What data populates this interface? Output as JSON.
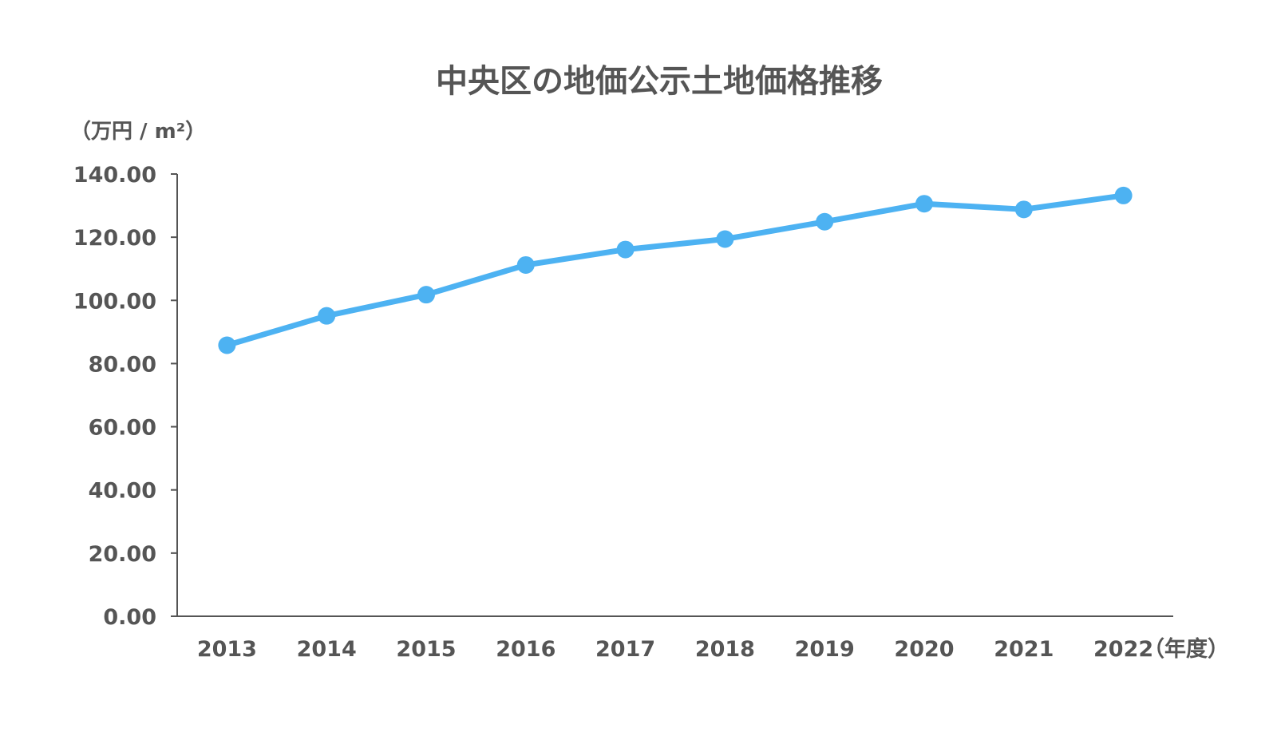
{
  "chart_data": {
    "type": "line",
    "title": "中央区の地価公示土地価格推移",
    "ylabel": "（万円 / m²）",
    "xlabel": "（年度）",
    "categories": [
      "2013",
      "2014",
      "2015",
      "2016",
      "2017",
      "2018",
      "2019",
      "2020",
      "2021",
      "2022"
    ],
    "yticks": [
      "0.00",
      "20.00",
      "40.00",
      "60.00",
      "80.00",
      "100.00",
      "120.00",
      "140.00"
    ],
    "ylim": [
      0,
      140
    ],
    "series": [
      {
        "values": [
          85.8,
          95.1,
          101.8,
          111.2,
          116.1,
          119.4,
          124.9,
          130.6,
          128.8,
          133.2
        ]
      }
    ],
    "grid": false,
    "legend": "none",
    "colors": {
      "line": "#4db2f2",
      "text": "#555555",
      "axis": "#555555"
    }
  }
}
